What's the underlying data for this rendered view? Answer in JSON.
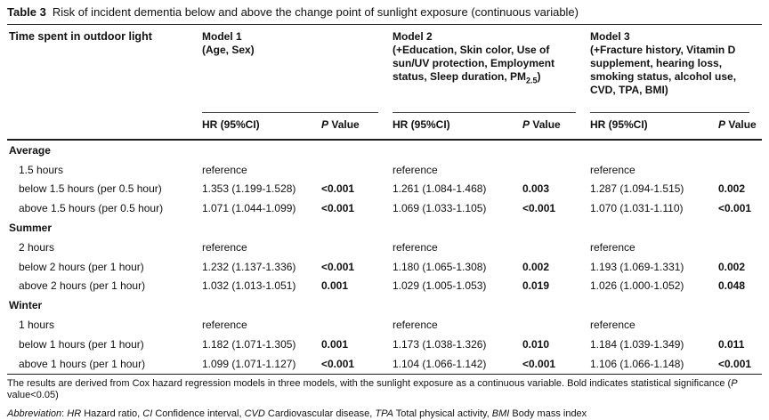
{
  "title": {
    "label": "Table 3",
    "text": "Risk of incident dementia below and above the change point of sunlight exposure (continuous variable)"
  },
  "header": {
    "row_label": "Time spent in outdoor light",
    "hr_label": "HR (95%CI)",
    "p_label": [
      {
        "t": "P",
        "i": true
      },
      {
        "t": " Value"
      }
    ],
    "models": [
      {
        "name": "Model 1",
        "desc": [
          {
            "t": "(Age, Sex)"
          }
        ]
      },
      {
        "name": "Model 2",
        "desc": [
          {
            "t": "(+Education, Skin color, Use of sun/UV protection, Employment status, Sleep duration, PM"
          },
          {
            "t": "2.5",
            "sub": true
          },
          {
            "t": ")"
          }
        ]
      },
      {
        "name": "Model 3",
        "desc": [
          {
            "t": "(+Fracture history, Vitamin D supplement, hearing loss, smoking status, alcohol use, CVD, TPA, BMI)"
          }
        ]
      }
    ]
  },
  "sections": [
    {
      "name": "Average",
      "rows": [
        {
          "label": "1.5 hours",
          "cells": [
            {
              "hr": "reference",
              "p": ""
            },
            {
              "hr": "reference",
              "p": ""
            },
            {
              "hr": "reference",
              "p": ""
            }
          ]
        },
        {
          "label": "below 1.5 hours (per 0.5 hour)",
          "cells": [
            {
              "hr": "1.353 (1.199-1.528)",
              "p": "<0.001"
            },
            {
              "hr": "1.261 (1.084-1.468)",
              "p": "0.003"
            },
            {
              "hr": "1.287 (1.094-1.515)",
              "p": "0.002"
            }
          ]
        },
        {
          "label": "above 1.5 hours (per 0.5 hour)",
          "cells": [
            {
              "hr": "1.071 (1.044-1.099)",
              "p": "<0.001"
            },
            {
              "hr": "1.069 (1.033-1.105)",
              "p": "<0.001"
            },
            {
              "hr": "1.070 (1.031-1.110)",
              "p": "<0.001"
            }
          ]
        }
      ]
    },
    {
      "name": "Summer",
      "rows": [
        {
          "label": "2 hours",
          "cells": [
            {
              "hr": "reference",
              "p": ""
            },
            {
              "hr": "reference",
              "p": ""
            },
            {
              "hr": "reference",
              "p": ""
            }
          ]
        },
        {
          "label": "below 2 hours (per 1 hour)",
          "cells": [
            {
              "hr": "1.232 (1.137-1.336)",
              "p": "<0.001"
            },
            {
              "hr": "1.180 (1.065-1.308)",
              "p": "0.002"
            },
            {
              "hr": "1.193 (1.069-1.331)",
              "p": "0.002"
            }
          ]
        },
        {
          "label": "above 2 hours (per 1 hour)",
          "cells": [
            {
              "hr": "1.032 (1.013-1.051)",
              "p": "0.001"
            },
            {
              "hr": "1.029 (1.005-1.053)",
              "p": "0.019"
            },
            {
              "hr": "1.026 (1.000-1.052)",
              "p": "0.048"
            }
          ]
        }
      ]
    },
    {
      "name": "Winter",
      "rows": [
        {
          "label": "1 hours",
          "cells": [
            {
              "hr": "reference",
              "p": ""
            },
            {
              "hr": "reference",
              "p": ""
            },
            {
              "hr": "reference",
              "p": ""
            }
          ]
        },
        {
          "label": "below 1 hours (per 1 hour)",
          "cells": [
            {
              "hr": "1.182 (1.071-1.305)",
              "p": "0.001"
            },
            {
              "hr": "1.173 (1.038-1.326)",
              "p": "0.010"
            },
            {
              "hr": "1.184 (1.039-1.349)",
              "p": "0.011"
            }
          ]
        },
        {
          "label": "above 1 hours (per 1 hour)",
          "cells": [
            {
              "hr": "1.099 (1.071-1.127)",
              "p": "<0.001"
            },
            {
              "hr": "1.104 (1.066-1.142)",
              "p": "<0.001"
            },
            {
              "hr": "1.106 (1.066-1.148)",
              "p": "<0.001"
            }
          ]
        }
      ]
    }
  ],
  "footnotes": {
    "note": [
      {
        "t": "The results are derived from Cox hazard regression models in three models, with the sunlight exposure as a continuous variable. Bold indicates statistical significance ("
      },
      {
        "t": "P",
        "i": true
      },
      {
        "t": " value<0.05)"
      }
    ],
    "abbrev": [
      {
        "t": "Abbreviation",
        "i": true
      },
      {
        "t": ": "
      },
      {
        "t": "HR",
        "i": true
      },
      {
        "t": " Hazard ratio, "
      },
      {
        "t": "CI",
        "i": true
      },
      {
        "t": " Confidence interval, "
      },
      {
        "t": "CVD",
        "i": true
      },
      {
        "t": " Cardiovascular disease, "
      },
      {
        "t": "TPA",
        "i": true
      },
      {
        "t": " Total physical activity, "
      },
      {
        "t": "BMI",
        "i": true
      },
      {
        "t": " Body mass index"
      }
    ]
  }
}
